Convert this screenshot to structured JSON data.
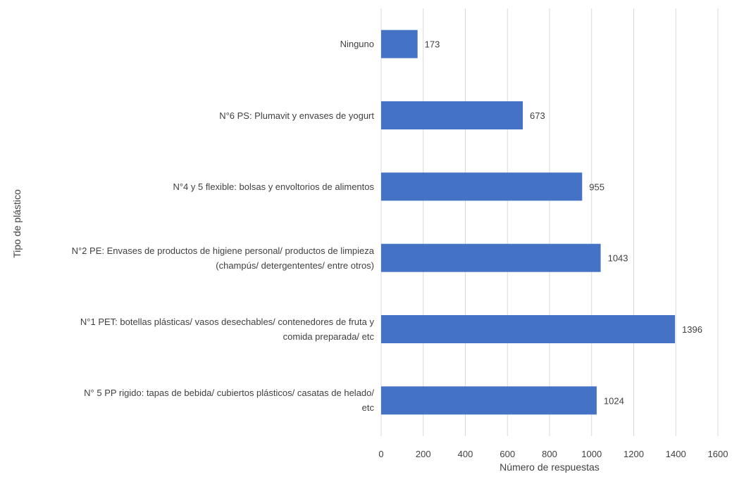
{
  "chart_data": {
    "type": "bar",
    "orientation": "horizontal",
    "categories": [
      "Ninguno",
      "N°6 PS: Plumavit y envases de yogurt",
      "N°4 y 5 flexible: bolsas y envoltorios de alimentos",
      "N°2 PE: Envases de productos de higiene personal/ productos de limpieza (champús/ detergententes/ entre otros)",
      "N°1 PET: botellas plásticas/ vasos desechables/ contenedores de fruta y comida preparada/ etc",
      "N° 5 PP rigido: tapas de bebida/ cubiertos plásticos/ casatas de helado/ etc"
    ],
    "category_lines": [
      [
        "Ninguno"
      ],
      [
        "N°6 PS: Plumavit y envases de yogurt"
      ],
      [
        "N°4 y 5 flexible: bolsas y envoltorios de alimentos"
      ],
      [
        "N°2 PE: Envases de productos de higiene personal/ productos de limpieza",
        "(champús/ detergententes/ entre otros)"
      ],
      [
        "N°1 PET: botellas plásticas/ vasos desechables/ contenedores de fruta y",
        "comida preparada/ etc"
      ],
      [
        "N° 5 PP rigido: tapas de bebida/ cubiertos plásticos/ casatas de helado/",
        "etc"
      ]
    ],
    "values": [
      173,
      673,
      955,
      1043,
      1396,
      1024
    ],
    "data_labels": [
      "173",
      "673",
      "955",
      "1043",
      "1396",
      "1024"
    ],
    "xlabel": "Número de respuestas",
    "ylabel": "Tipo de plástico",
    "xlim": [
      0,
      1600
    ],
    "xticks": [
      "0",
      "200",
      "400",
      "600",
      "800",
      "1000",
      "1200",
      "1400",
      "1600"
    ],
    "grid": "vertical",
    "bar_color": "#4472c4",
    "grid_color": "#d9d9d9"
  }
}
